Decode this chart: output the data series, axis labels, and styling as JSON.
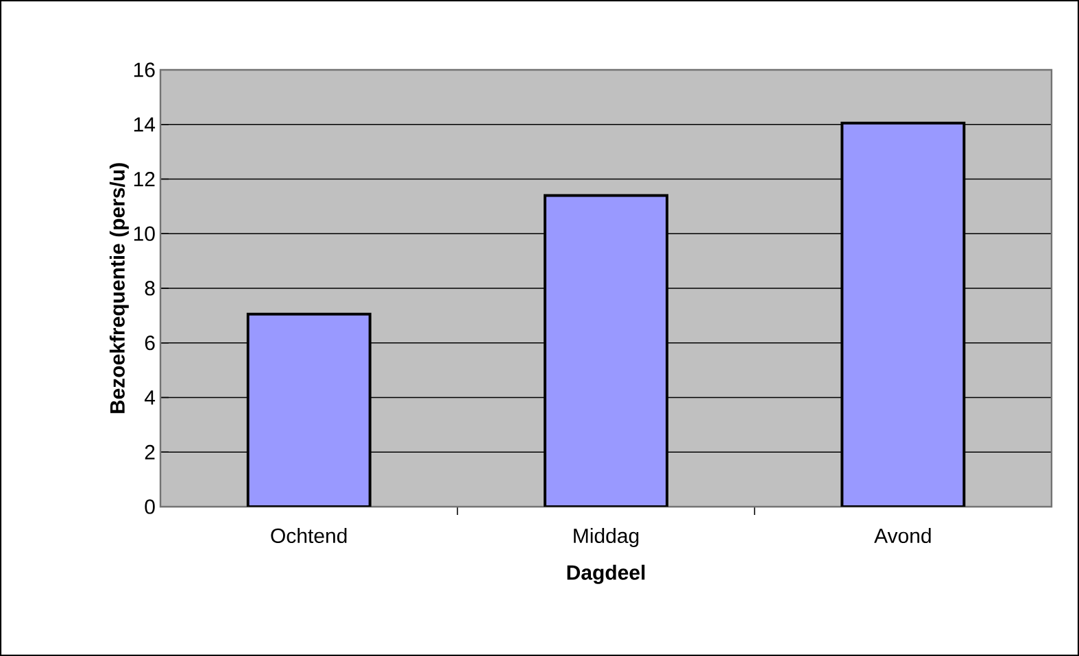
{
  "chart_data": {
    "type": "bar",
    "xlabel": "Dagdeel",
    "ylabel": "Bezoekfrequentie (pers/u)",
    "categories": [
      "Ochtend",
      "Middag",
      "Avond"
    ],
    "values": [
      7.05,
      11.4,
      14.05
    ],
    "color": "#9999ff",
    "ylim": [
      0,
      16
    ],
    "yticks": [
      0,
      2,
      4,
      6,
      8,
      10,
      12,
      14,
      16
    ],
    "grid": "y"
  }
}
